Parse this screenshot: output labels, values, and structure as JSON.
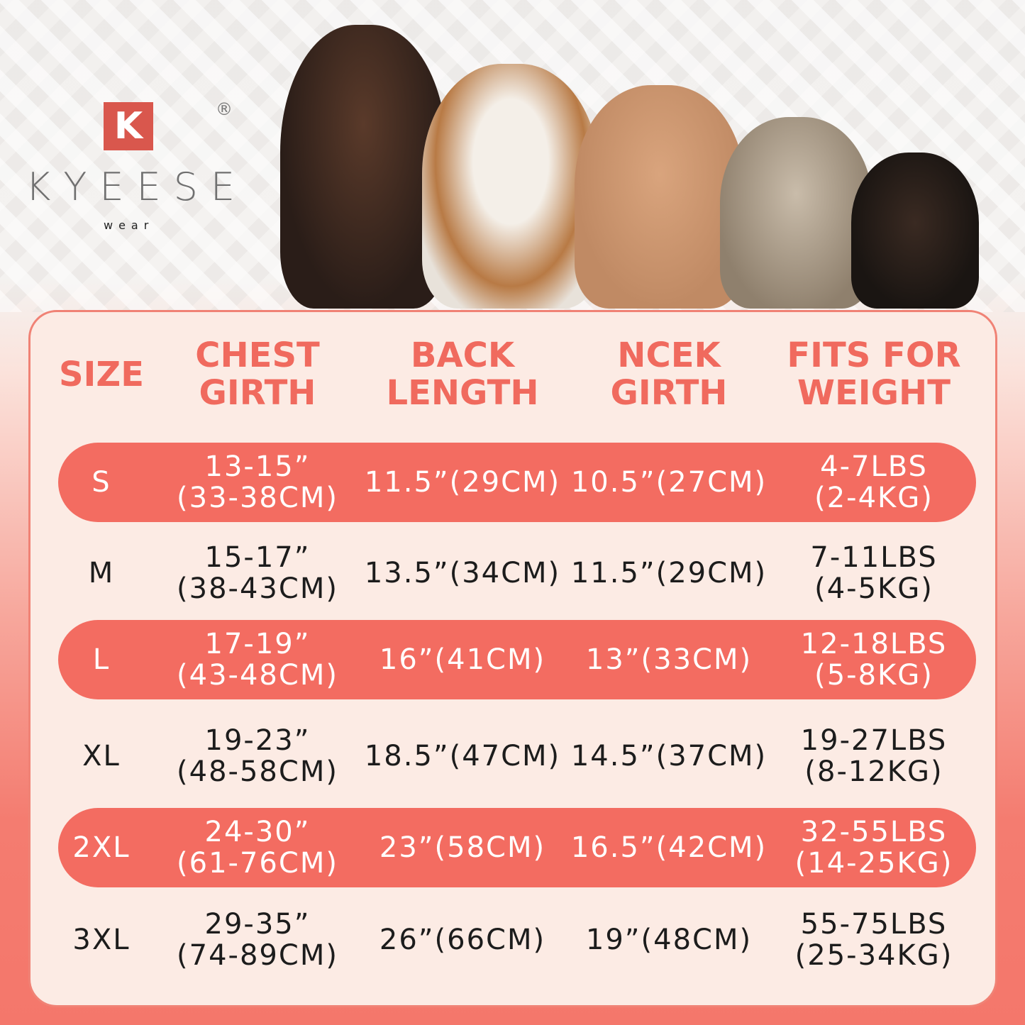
{
  "brand": {
    "logo_letter": "K",
    "name": "KYEESE",
    "sub": "wear",
    "registered": "®"
  },
  "colors": {
    "accent": "#f36c61",
    "header_text": "#f06a5e",
    "card_bg": "#fcebe4"
  },
  "headers": [
    [
      "SIZE"
    ],
    [
      "CHEST",
      "GIRTH"
    ],
    [
      "BACK",
      "LENGTH"
    ],
    [
      "NCEK",
      "GIRTH"
    ],
    [
      "FITS FOR",
      "WEIGHT"
    ]
  ],
  "rows": [
    {
      "size": "S",
      "chest": [
        "13-15”",
        "(33-38CM)"
      ],
      "back": "11.5”(29CM)",
      "neck": "10.5”(27CM)",
      "weight": [
        "4-7LBS",
        "(2-4KG)"
      ],
      "highlight": true
    },
    {
      "size": "M",
      "chest": [
        "15-17”",
        "(38-43CM)"
      ],
      "back": "13.5”(34CM)",
      "neck": "11.5”(29CM)",
      "weight": [
        "7-11LBS",
        "(4-5KG)"
      ],
      "highlight": false
    },
    {
      "size": "L",
      "chest": [
        "17-19”",
        "(43-48CM)"
      ],
      "back": "16”(41CM)",
      "neck": "13”(33CM)",
      "weight": [
        "12-18LBS",
        "(5-8KG)"
      ],
      "highlight": true
    },
    {
      "size": "XL",
      "chest": [
        "19-23”",
        "(48-58CM)"
      ],
      "back": "18.5”(47CM)",
      "neck": "14.5”(37CM)",
      "weight": [
        "19-27LBS",
        "(8-12KG)"
      ],
      "highlight": false
    },
    {
      "size": "2XL",
      "chest": [
        "24-30”",
        "(61-76CM)"
      ],
      "back": "23”(58CM)",
      "neck": "16.5”(42CM)",
      "weight": [
        "32-55LBS",
        "(14-25KG)"
      ],
      "highlight": true
    },
    {
      "size": "3XL",
      "chest": [
        "29-35”",
        "(74-89CM)"
      ],
      "back": "26”(66CM)",
      "neck": "19”(48CM)",
      "weight": [
        "55-75LBS",
        "(25-34KG)"
      ],
      "highlight": false
    }
  ]
}
